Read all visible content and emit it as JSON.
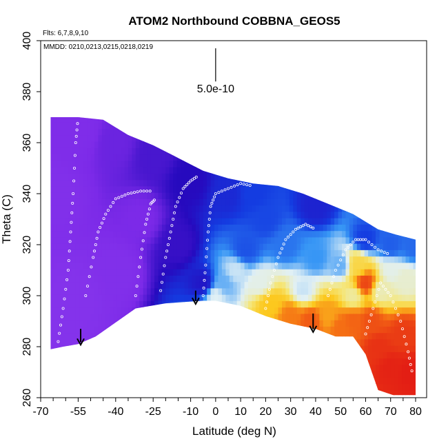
{
  "chart_data": {
    "type": "heatmap",
    "title": "ATOM2 Northbound COBBNA_GEOS5",
    "flights_label": "Flts: 6,7,8,9,10",
    "dates_label": "MMDD: 0210,0213,0215,0218,0219",
    "xlabel": "Latitude (deg N)",
    "ylabel": "Theta (C)",
    "xlim": [
      -70,
      80
    ],
    "ylim": [
      260,
      400
    ],
    "x_ticks": [
      -70,
      -55,
      -40,
      -25,
      -10,
      0,
      10,
      20,
      30,
      40,
      50,
      60,
      70,
      80
    ],
    "x_minor_ticks": [
      -65,
      -60,
      -50,
      -45,
      -35,
      -30,
      -20,
      -15,
      -5,
      5,
      15,
      25,
      35,
      45,
      55,
      65,
      75
    ],
    "y_ticks": [
      260,
      280,
      300,
      320,
      340,
      360,
      380,
      400
    ],
    "scale_bar_label": "5.0e-10",
    "scale_bar": {
      "x": 0,
      "y_top": 397,
      "y_bottom": 384
    },
    "colorscale": "purple-blue-white-yellow-red",
    "value_units": "relative",
    "upper_boundary": [
      [
        -66,
        370
      ],
      [
        -55,
        370
      ],
      [
        -45,
        369
      ],
      [
        -35,
        363
      ],
      [
        -25,
        359
      ],
      [
        -15,
        354
      ],
      [
        -5,
        349
      ],
      [
        5,
        346
      ],
      [
        15,
        344
      ],
      [
        25,
        343
      ],
      [
        35,
        340
      ],
      [
        45,
        336
      ],
      [
        55,
        332
      ],
      [
        65,
        326
      ],
      [
        72,
        324
      ],
      [
        80,
        322
      ]
    ],
    "lower_boundary": [
      [
        -66,
        279
      ],
      [
        -61,
        280
      ],
      [
        -55,
        281
      ],
      [
        -48,
        284
      ],
      [
        -32,
        295
      ],
      [
        -20,
        297
      ],
      [
        -5,
        298
      ],
      [
        0,
        298
      ],
      [
        10,
        296
      ],
      [
        20,
        292
      ],
      [
        30,
        289
      ],
      [
        40,
        287
      ],
      [
        48,
        284
      ],
      [
        55,
        284
      ],
      [
        60,
        277
      ],
      [
        65,
        263
      ],
      [
        71,
        261
      ],
      [
        80,
        261
      ]
    ],
    "field_anchors": [
      {
        "lat": -65,
        "theta": 285,
        "v": 0.06
      },
      {
        "lat": -65,
        "theta": 340,
        "v": 0.08
      },
      {
        "lat": -55,
        "theta": 300,
        "v": 0.06
      },
      {
        "lat": -55,
        "theta": 365,
        "v": 0.1
      },
      {
        "lat": -40,
        "theta": 310,
        "v": 0.08
      },
      {
        "lat": -40,
        "theta": 360,
        "v": 0.14
      },
      {
        "lat": -30,
        "theta": 330,
        "v": 0.12
      },
      {
        "lat": -25,
        "theta": 355,
        "v": 0.18
      },
      {
        "lat": -15,
        "theta": 320,
        "v": 0.2
      },
      {
        "lat": -10,
        "theta": 345,
        "v": 0.22
      },
      {
        "lat": -5,
        "theta": 305,
        "v": 0.24
      },
      {
        "lat": 0,
        "theta": 300,
        "v": 0.45
      },
      {
        "lat": 3,
        "theta": 305,
        "v": 0.4
      },
      {
        "lat": 8,
        "theta": 310,
        "v": 0.44
      },
      {
        "lat": 5,
        "theta": 340,
        "v": 0.27
      },
      {
        "lat": 15,
        "theta": 340,
        "v": 0.3
      },
      {
        "lat": 12,
        "theta": 318,
        "v": 0.32
      },
      {
        "lat": 18,
        "theta": 305,
        "v": 0.46
      },
      {
        "lat": 22,
        "theta": 297,
        "v": 0.68
      },
      {
        "lat": 30,
        "theta": 292,
        "v": 0.8
      },
      {
        "lat": 38,
        "theta": 290,
        "v": 0.86
      },
      {
        "lat": 45,
        "theta": 292,
        "v": 0.74
      },
      {
        "lat": 50,
        "theta": 288,
        "v": 0.82
      },
      {
        "lat": 55,
        "theta": 290,
        "v": 0.84
      },
      {
        "lat": 28,
        "theta": 320,
        "v": 0.35
      },
      {
        "lat": 40,
        "theta": 315,
        "v": 0.38
      },
      {
        "lat": 50,
        "theta": 312,
        "v": 0.4
      },
      {
        "lat": 35,
        "theta": 302,
        "v": 0.44
      },
      {
        "lat": 55,
        "theta": 300,
        "v": 0.52
      },
      {
        "lat": 57,
        "theta": 312,
        "v": 0.62
      },
      {
        "lat": 60,
        "theta": 305,
        "v": 0.9
      },
      {
        "lat": 62,
        "theta": 290,
        "v": 0.88
      },
      {
        "lat": 65,
        "theta": 280,
        "v": 0.94
      },
      {
        "lat": 70,
        "theta": 272,
        "v": 0.97
      },
      {
        "lat": 75,
        "theta": 285,
        "v": 0.92
      },
      {
        "lat": 78,
        "theta": 270,
        "v": 0.98
      },
      {
        "lat": 66,
        "theta": 302,
        "v": 0.5
      },
      {
        "lat": 70,
        "theta": 310,
        "v": 0.46
      },
      {
        "lat": 76,
        "theta": 306,
        "v": 0.48
      },
      {
        "lat": 70,
        "theta": 320,
        "v": 0.33
      },
      {
        "lat": 60,
        "theta": 322,
        "v": 0.3
      },
      {
        "lat": 40,
        "theta": 335,
        "v": 0.26
      },
      {
        "lat": 79,
        "theta": 320,
        "v": 0.34
      },
      {
        "lat": 20,
        "theta": 330,
        "v": 0.31
      }
    ],
    "wind_arrows": [
      {
        "lat": -54,
        "theta_start": 287,
        "theta_end": 281
      },
      {
        "lat": -8,
        "theta_start": 302,
        "theta_end": 297
      },
      {
        "lat": 39,
        "theta_start": 293,
        "theta_end": 286
      }
    ],
    "sample_tracks": [
      {
        "name": "track-left-outer",
        "points": [
          [
            -63,
            282
          ],
          [
            -61,
            295
          ],
          [
            -59,
            310
          ],
          [
            -58,
            325
          ],
          [
            -57,
            340
          ],
          [
            -56,
            360
          ],
          [
            -55,
            370
          ]
        ]
      },
      {
        "name": "track-left-inner",
        "points": [
          [
            -52,
            300
          ],
          [
            -49,
            315
          ],
          [
            -47,
            325
          ],
          [
            -44,
            332
          ],
          [
            -40,
            338
          ],
          [
            -35,
            340
          ],
          [
            -30,
            341
          ],
          [
            -25,
            341
          ]
        ]
      },
      {
        "name": "track-middle-a",
        "points": [
          [
            -32,
            300
          ],
          [
            -30,
            315
          ],
          [
            -28,
            328
          ],
          [
            -26,
            336
          ],
          [
            -24,
            338
          ]
        ]
      },
      {
        "name": "track-middle-b",
        "points": [
          [
            -22,
            302
          ],
          [
            -20,
            315
          ],
          [
            -18,
            325
          ],
          [
            -16,
            335
          ],
          [
            -13,
            342
          ],
          [
            -10,
            345
          ],
          [
            -7,
            347
          ]
        ]
      },
      {
        "name": "track-tropics",
        "points": [
          [
            -5,
            300
          ],
          [
            -4,
            312
          ],
          [
            -3,
            325
          ],
          [
            -2,
            335
          ],
          [
            0,
            340
          ],
          [
            5,
            342
          ],
          [
            10,
            344
          ],
          [
            15,
            343
          ]
        ]
      },
      {
        "name": "track-north-a",
        "points": [
          [
            20,
            295
          ],
          [
            22,
            305
          ],
          [
            25,
            315
          ],
          [
            28,
            322
          ],
          [
            32,
            326
          ],
          [
            36,
            328
          ],
          [
            40,
            326
          ]
        ]
      },
      {
        "name": "track-north-b",
        "points": [
          [
            45,
            300
          ],
          [
            48,
            310
          ],
          [
            52,
            318
          ],
          [
            56,
            322
          ],
          [
            60,
            322
          ],
          [
            65,
            318
          ],
          [
            70,
            316
          ]
        ]
      },
      {
        "name": "track-arctic",
        "points": [
          [
            60,
            285
          ],
          [
            63,
            295
          ],
          [
            66,
            305
          ],
          [
            70,
            300
          ],
          [
            74,
            290
          ],
          [
            77,
            278
          ],
          [
            79,
            268
          ]
        ]
      }
    ]
  }
}
